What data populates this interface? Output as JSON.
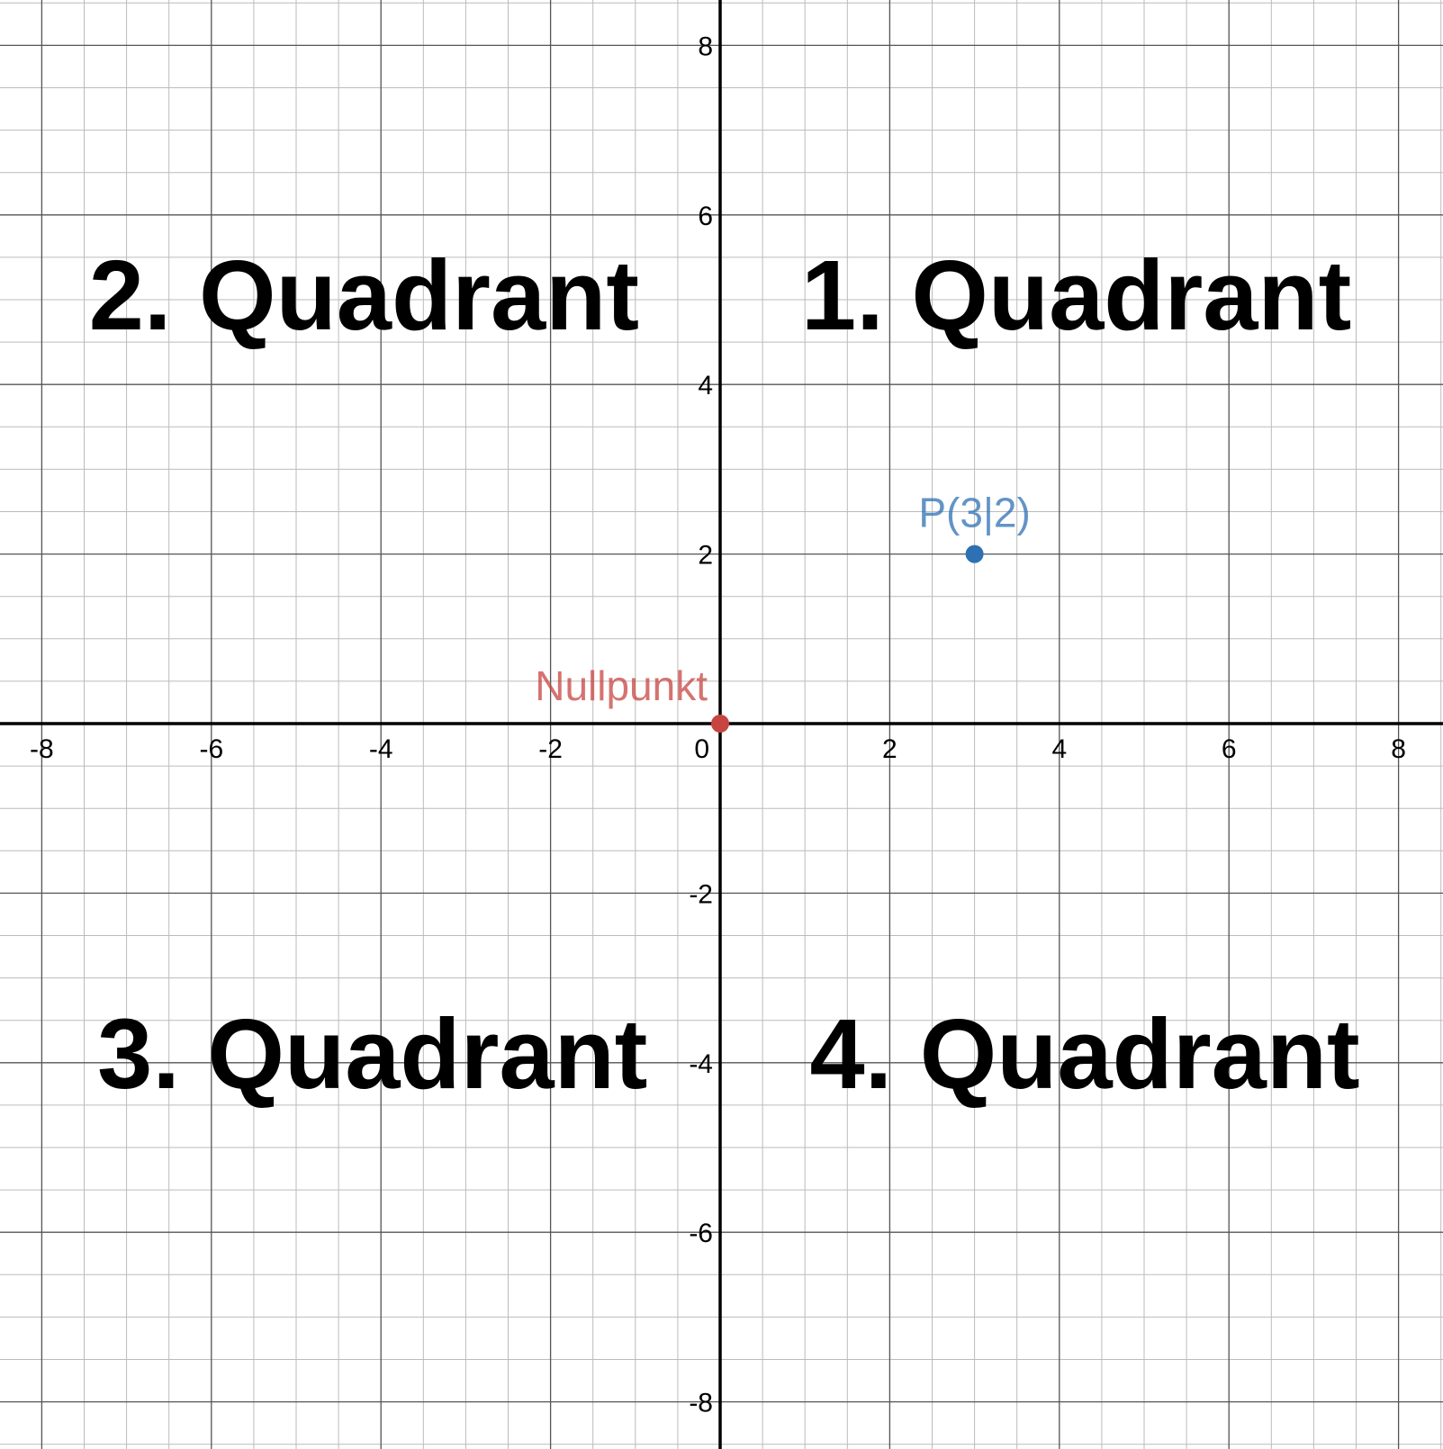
{
  "chart_data": {
    "type": "scatter",
    "xlim": [
      -8.5,
      8.5
    ],
    "ylim": [
      -8.5,
      8.5
    ],
    "grid": true,
    "minor_grid_step": 0.5,
    "major_grid_step": 2,
    "x_ticks": [
      -8,
      -6,
      -4,
      -2,
      2,
      4,
      6,
      8
    ],
    "y_ticks": [
      8,
      6,
      4,
      2,
      -2,
      -4,
      -6,
      -8
    ],
    "x_tick_labels": [
      "-8",
      "-6",
      "-4",
      "-2",
      "2",
      "4",
      "6",
      "8"
    ],
    "y_tick_labels": [
      "8",
      "6",
      "4",
      "2",
      "-2",
      "-4",
      "-6",
      "-8"
    ],
    "origin_label": "0",
    "points": [
      {
        "x": 0,
        "y": 0,
        "label": "Nullpunkt",
        "color": "#c74440"
      },
      {
        "x": 3,
        "y": 2,
        "label": "P(3|2)",
        "color": "#2d70b3"
      }
    ],
    "annotations": [
      {
        "text": "1. Quadrant",
        "x": 4.2,
        "y": 4.65
      },
      {
        "text": "2. Quadrant",
        "x": -4.2,
        "y": 4.65
      },
      {
        "text": "3. Quadrant",
        "x": -4.1,
        "y": -4.3
      },
      {
        "text": "4. Quadrant",
        "x": 4.3,
        "y": -4.3
      }
    ]
  },
  "colors": {
    "axis": "#000000",
    "major_grid": "#555555",
    "minor_grid": "#bbbbbb",
    "background": "#ffffff"
  }
}
